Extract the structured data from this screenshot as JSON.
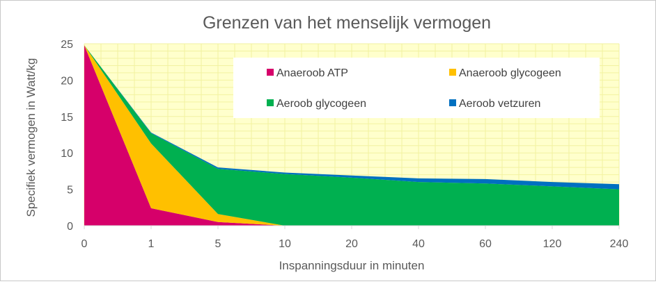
{
  "chart_data": {
    "type": "area",
    "stacked": true,
    "title": "Grenzen van het menselijk vermogen",
    "xlabel": "Inspanningsduur in minuten",
    "ylabel": "Specifiek vermogen in Watt/kg",
    "categories": [
      "0",
      "1",
      "5",
      "10",
      "20",
      "40",
      "60",
      "120",
      "240"
    ],
    "ylim": [
      0,
      25
    ],
    "yticks": [
      "0",
      "5",
      "10",
      "15",
      "20",
      "25"
    ],
    "grid": true,
    "legend_position": "top-right",
    "plot_background": "#FFFFCC",
    "grid_color": "#F2F2A0",
    "series": [
      {
        "name": "Anaeroob ATP",
        "color": "#D6006A",
        "values": [
          24.8,
          2.4,
          0.5,
          0.0,
          0.0,
          0.0,
          0.0,
          0.0,
          0.0
        ]
      },
      {
        "name": "Anaeroob glycogeen",
        "color": "#FFC000",
        "values": [
          0.0,
          8.9,
          1.1,
          0.0,
          0.0,
          0.0,
          0.0,
          0.0,
          0.0
        ]
      },
      {
        "name": "Aeroob glycogeen",
        "color": "#00B050",
        "values": [
          0.0,
          1.4,
          6.2,
          7.1,
          6.6,
          6.0,
          5.8,
          5.4,
          5.0
        ]
      },
      {
        "name": "Aeroob vetzuren",
        "color": "#0070C0",
        "values": [
          0.0,
          0.1,
          0.2,
          0.2,
          0.3,
          0.5,
          0.6,
          0.6,
          0.7
        ]
      }
    ]
  }
}
